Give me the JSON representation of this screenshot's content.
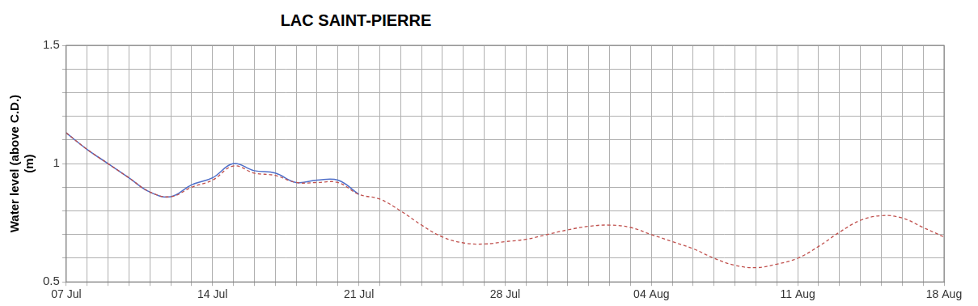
{
  "chart_data": {
    "type": "line",
    "title": "LAC SAINT-PIERRE",
    "y_label": [
      "Water level (above C.D.)",
      "(m)"
    ],
    "categories": [
      "07 Jul",
      null,
      null,
      null,
      null,
      null,
      null,
      "14 Jul",
      null,
      null,
      null,
      null,
      null,
      null,
      "21 Jul",
      null,
      null,
      null,
      null,
      null,
      null,
      "28 Jul",
      null,
      null,
      null,
      null,
      null,
      null,
      "04 Aug",
      null,
      null,
      null,
      null,
      null,
      null,
      "11 Aug",
      null,
      null,
      null,
      null,
      null,
      null,
      "18 Aug"
    ],
    "series": [
      {
        "color": "#c0504d",
        "line_style": "dashed",
        "values": [
          1.13,
          1.06,
          1.0,
          0.94,
          0.88,
          0.86,
          0.9,
          0.93,
          0.99,
          0.96,
          0.95,
          0.92,
          0.92,
          0.92,
          0.87,
          0.85,
          0.8,
          0.74,
          0.69,
          0.665,
          0.66,
          0.67,
          0.68,
          0.7,
          0.72,
          0.735,
          0.74,
          0.73,
          0.7,
          0.67,
          0.64,
          0.6,
          0.57,
          0.56,
          0.575,
          0.6,
          0.65,
          0.71,
          0.76,
          0.78,
          0.77,
          0.73,
          0.69
        ]
      },
      {
        "color": "#4f6fc9",
        "line_style": "solid",
        "values": [
          1.13,
          1.06,
          1.0,
          0.94,
          0.88,
          0.86,
          0.91,
          0.94,
          1.0,
          0.97,
          0.96,
          0.92,
          0.93,
          0.93,
          0.87,
          null,
          null,
          null,
          null,
          null,
          null,
          null,
          null,
          null,
          null,
          null,
          null,
          null,
          null,
          null,
          null,
          null,
          null,
          null,
          null,
          null,
          null,
          null,
          null,
          null,
          null,
          null,
          null
        ]
      }
    ],
    "ylim": [
      0.5,
      1.5
    ],
    "yticks": [
      0.5,
      {
        "value": 0.6,
        "label": null
      },
      {
        "value": 0.7,
        "label": null
      },
      {
        "value": 0.8,
        "label": null
      },
      {
        "value": 0.9,
        "label": null
      },
      1,
      {
        "value": 1.1,
        "label": null
      },
      {
        "value": 1.2,
        "label": null
      },
      {
        "value": 1.3,
        "label": null
      },
      {
        "value": 1.4,
        "label": null
      },
      1.5
    ],
    "grid": true
  }
}
